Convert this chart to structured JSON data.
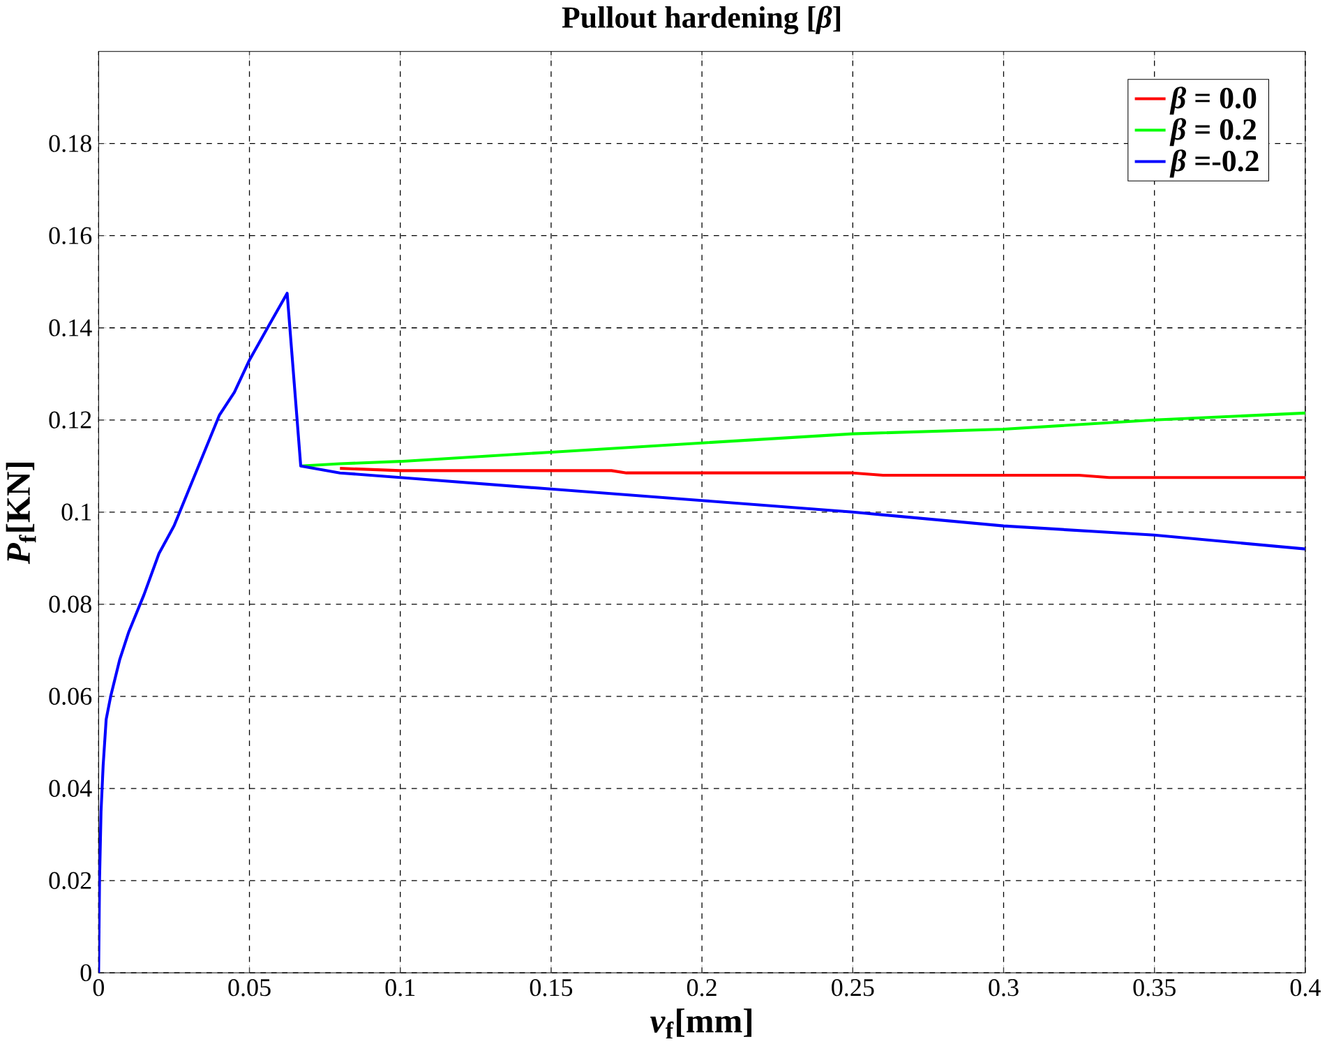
{
  "chart_data": {
    "type": "line",
    "title": "Pullout hardening  [*β*]",
    "xlabel": "*v*$_{f}$[mm]",
    "ylabel": "*P*$_{f}$[KN]",
    "xlim": [
      0,
      0.4
    ],
    "ylim": [
      0,
      0.2
    ],
    "xticks": [
      0,
      0.05,
      0.1,
      0.15,
      0.2,
      0.25,
      0.3,
      0.35,
      0.4
    ],
    "yticks": [
      0,
      0.02,
      0.04,
      0.06,
      0.08,
      0.1,
      0.12,
      0.14,
      0.16,
      0.18
    ],
    "grid": true,
    "legend": "top right",
    "series": [
      {
        "name": "*β* = 0.0",
        "color": "#ff0000",
        "x": [
          0.08,
          0.1,
          0.17,
          0.175,
          0.25,
          0.26,
          0.325,
          0.335,
          0.4
        ],
        "values": [
          0.1095,
          0.109,
          0.109,
          0.1085,
          0.1085,
          0.108,
          0.108,
          0.1075,
          0.1075
        ]
      },
      {
        "name": "*β* = 0.2",
        "color": "#00ff00",
        "x": [
          0.067,
          0.08,
          0.1,
          0.15,
          0.2,
          0.25,
          0.3,
          0.35,
          0.4
        ],
        "values": [
          0.11,
          0.1105,
          0.111,
          0.113,
          0.115,
          0.117,
          0.118,
          0.12,
          0.1215
        ]
      },
      {
        "name": "*β* =-0.2",
        "color": "#0000ff",
        "x": [
          0,
          0.0003,
          0.0008,
          0.0015,
          0.0025,
          0.004,
          0.007,
          0.01,
          0.015,
          0.02,
          0.025,
          0.03,
          0.035,
          0.04,
          0.045,
          0.05,
          0.056,
          0.0625,
          0.067,
          0.08,
          0.1,
          0.15,
          0.2,
          0.25,
          0.3,
          0.35,
          0.4
        ],
        "values": [
          0,
          0.02,
          0.035,
          0.045,
          0.055,
          0.06,
          0.068,
          0.074,
          0.082,
          0.091,
          0.097,
          0.105,
          0.113,
          0.121,
          0.126,
          0.133,
          0.14,
          0.1475,
          0.11,
          0.1085,
          0.1075,
          0.105,
          0.1025,
          0.1,
          0.097,
          0.095,
          0.092
        ]
      }
    ]
  }
}
